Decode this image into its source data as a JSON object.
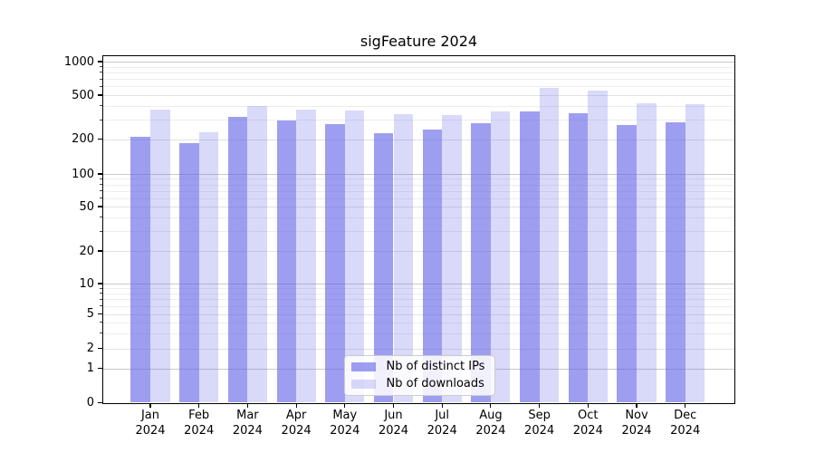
{
  "chart_data": {
    "type": "bar",
    "title": "sigFeature 2024",
    "categories": [
      "Jan",
      "Feb",
      "Mar",
      "Apr",
      "May",
      "Jun",
      "Jul",
      "Aug",
      "Sep",
      "Oct",
      "Nov",
      "Dec"
    ],
    "x_sub_label": "2024",
    "series": [
      {
        "name": "Nb of distinct IPs",
        "color": "#9e9ef0",
        "values": [
          210,
          185,
          315,
          295,
          275,
          225,
          245,
          280,
          355,
          345,
          270,
          285
        ]
      },
      {
        "name": "Nb of downloads",
        "color": "#d9d9f9",
        "values": [
          370,
          230,
          400,
          370,
          360,
          335,
          330,
          355,
          585,
          545,
          425,
          415
        ]
      }
    ],
    "yscale": "symlog",
    "ylim": [
      0,
      1150
    ],
    "y_ticks": [
      0,
      1,
      2,
      5,
      10,
      20,
      50,
      100,
      200,
      500,
      1000
    ],
    "y_minor_gridlines": [
      3,
      4,
      6,
      7,
      8,
      9,
      30,
      40,
      60,
      70,
      80,
      90,
      300,
      400,
      600,
      700,
      800,
      900
    ],
    "grid": true,
    "legend_position": "lower center",
    "xlabel": "",
    "ylabel": ""
  },
  "colors": {
    "bar_distinct_ips": "#9e9ef0",
    "bar_downloads": "#d9d9f9",
    "grid_major": "#c9c9c9",
    "grid_minor": "#ededed",
    "axis": "#000000",
    "legend_border": "#cccccc"
  }
}
